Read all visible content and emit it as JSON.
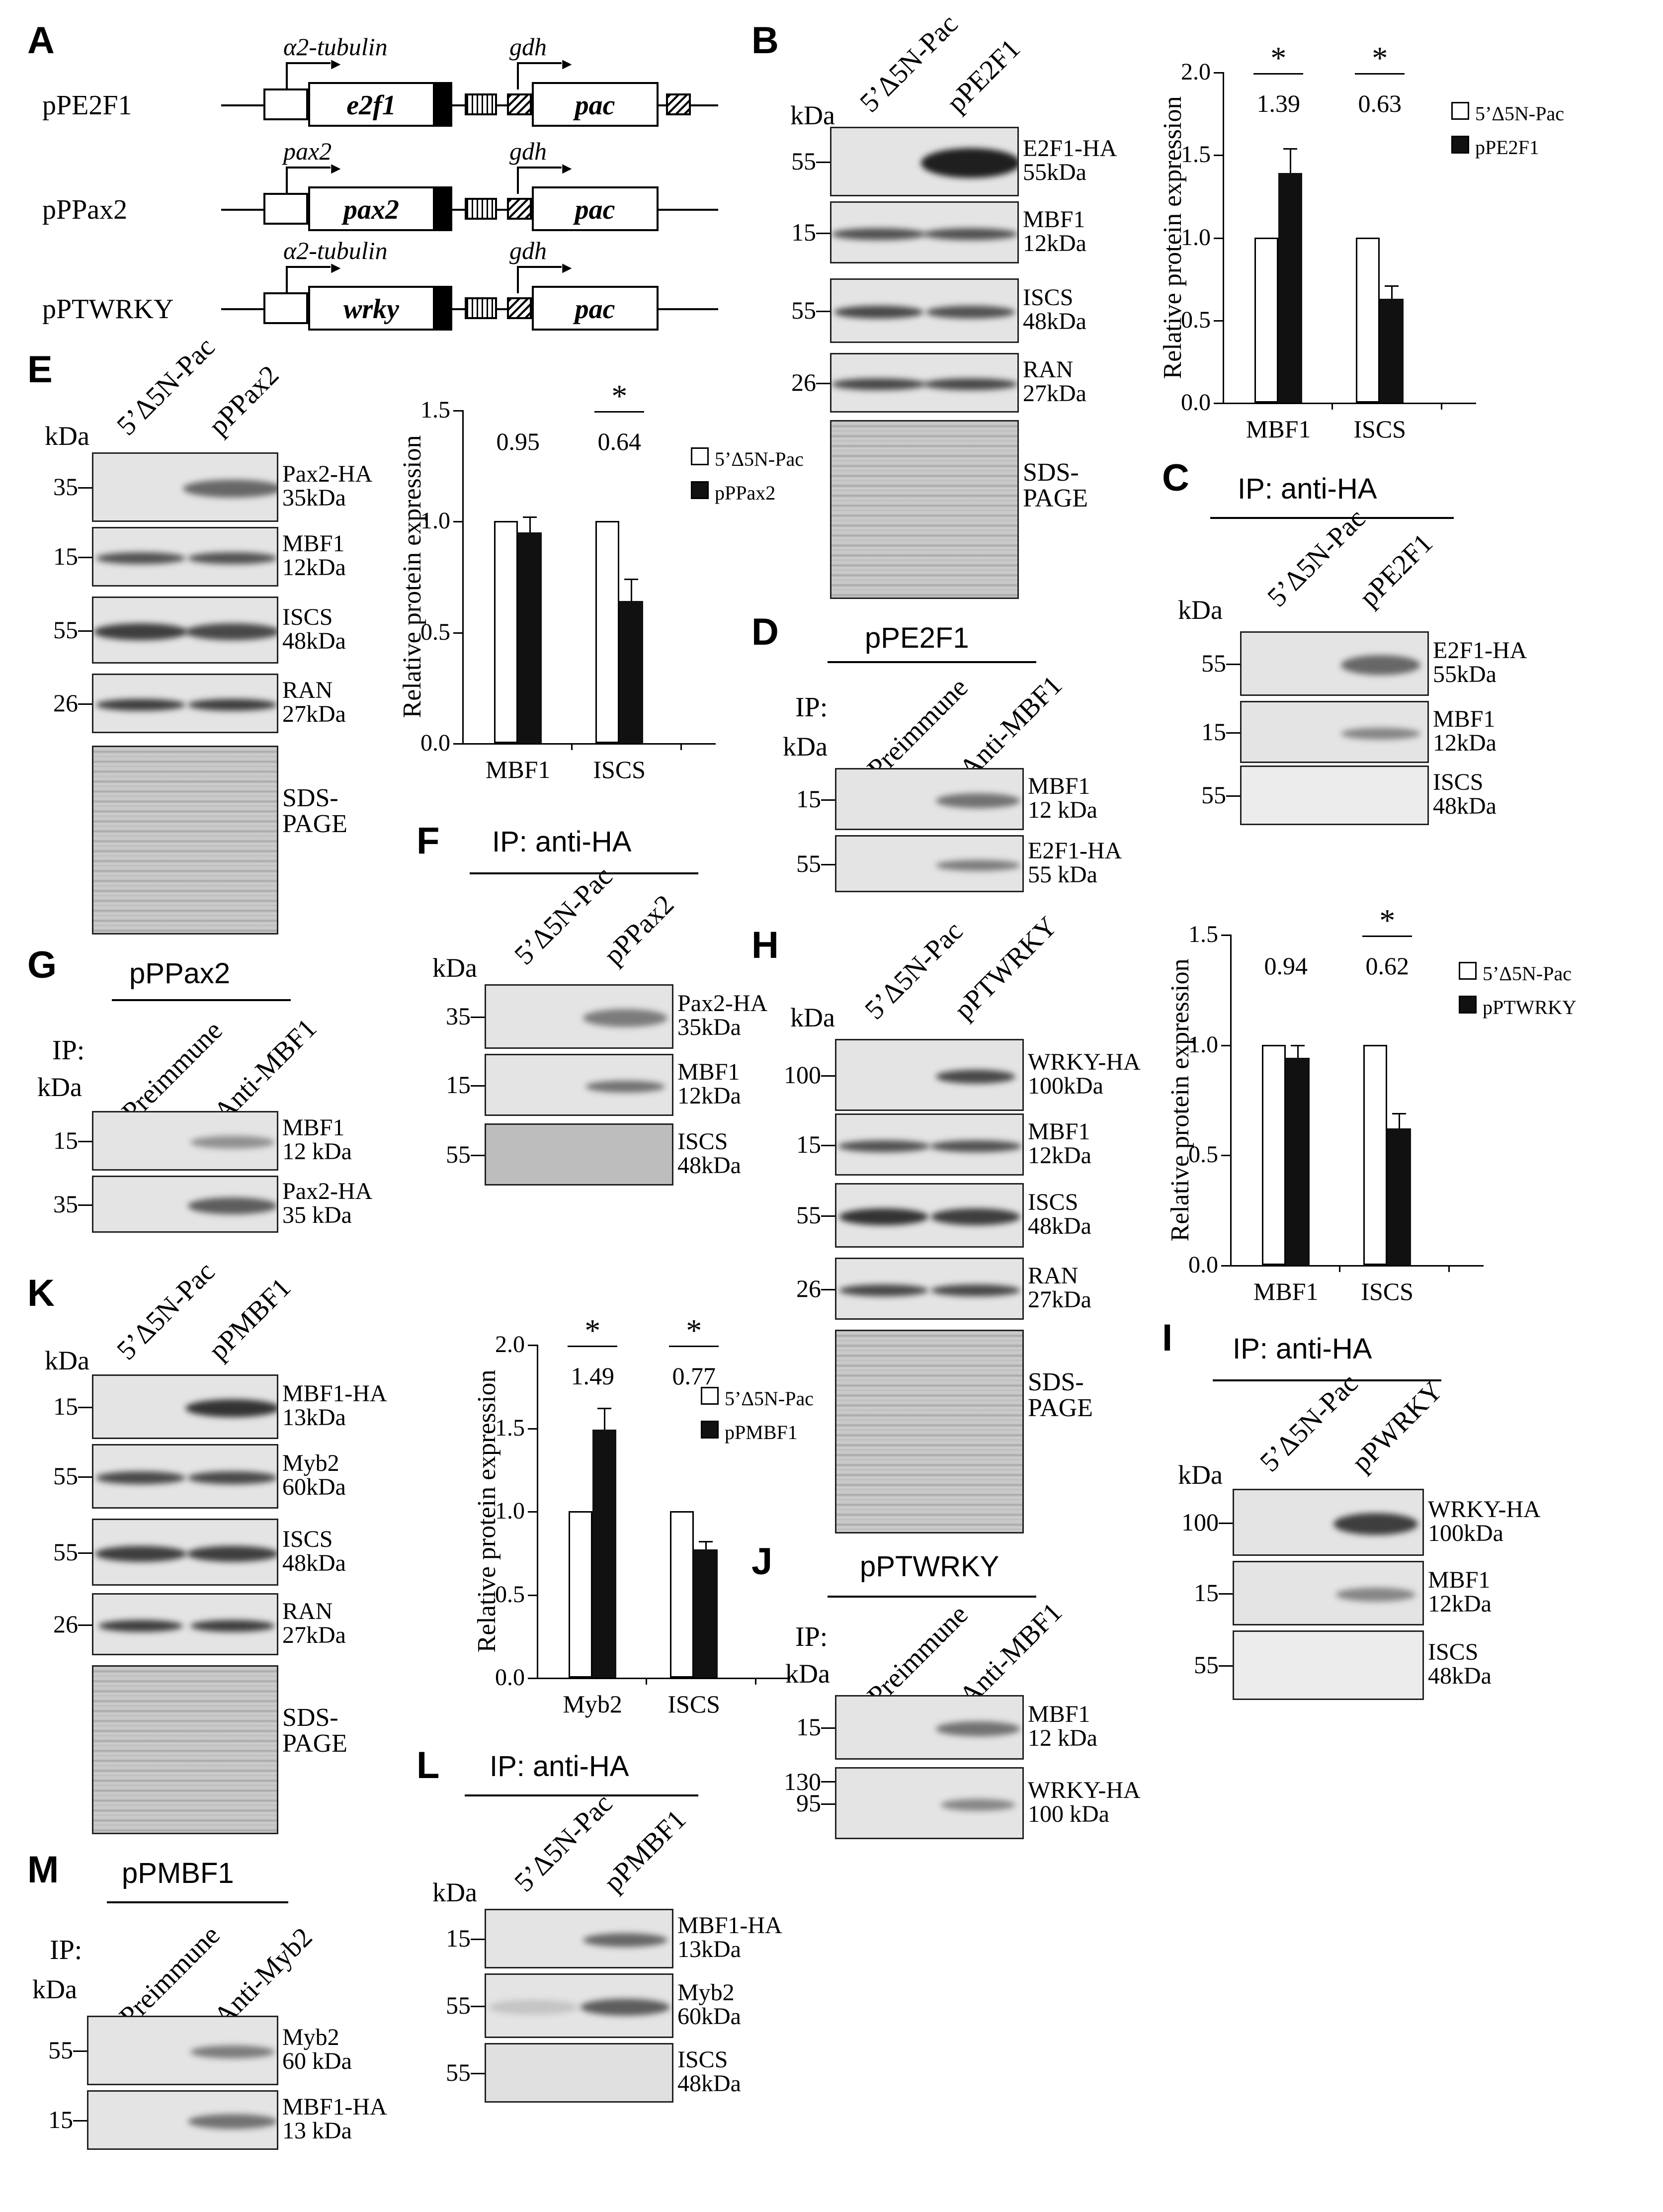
{
  "panel_letters": {
    "A": "A",
    "B": "B",
    "C": "C",
    "D": "D",
    "E": "E",
    "F": "F",
    "G": "G",
    "H": "H",
    "I": "I",
    "J": "J",
    "K": "K",
    "L": "L",
    "M": "M"
  },
  "common": {
    "kda": "kDa",
    "ctrl": "5’Δ5N-Pac",
    "ip_anti_ha": "IP: anti-HA",
    "ip": "IP:",
    "preimmune": "Preimmune",
    "anti_mbf1": "Anti-MBF1",
    "anti_myb2": "Anti-Myb2",
    "sds_page": "SDS-\nPAGE",
    "y_label": "Relative protein expression"
  },
  "panelA": {
    "constructs": [
      {
        "name": "pPE2F1",
        "promoter": "α2-tubulin",
        "gene": "e2f1",
        "gdh": "gdh",
        "pac": "pac"
      },
      {
        "name": "pPPax2",
        "promoter": "pax2",
        "gene": "pax2",
        "gdh": "gdh",
        "pac": "pac"
      },
      {
        "name": "pPTWRKY",
        "promoter": "α2-tubulin",
        "gene": "wrky",
        "gdh": "gdh",
        "pac": "pac"
      }
    ]
  },
  "panelB": {
    "lane2": "pPE2F1",
    "markers": [
      "55",
      "15",
      "55",
      "26"
    ],
    "labels": [
      "E2F1-HA\n55kDa",
      "MBF1\n12kDa",
      "ISCS\n48kDa",
      "RAN\n27kDa"
    ]
  },
  "panelC": {
    "lane2": "pPE2F1",
    "markers": [
      "55",
      "15",
      "55"
    ],
    "labels": [
      "E2F1-HA\n55kDa",
      "MBF1\n12kDa",
      "ISCS\n48kDa"
    ]
  },
  "panelD": {
    "title": "pPE2F1",
    "markers": [
      "15",
      "55"
    ],
    "labels": [
      "MBF1\n12 kDa",
      "E2F1-HA\n55 kDa"
    ]
  },
  "panelE": {
    "lane2": "pPPax2",
    "markers": [
      "35",
      "15",
      "55",
      "26"
    ],
    "labels": [
      "Pax2-HA\n35kDa",
      "MBF1\n12kDa",
      "ISCS\n48kDa",
      "RAN\n27kDa"
    ]
  },
  "panelF": {
    "lane2": "pPPax2",
    "markers": [
      "35",
      "15",
      "55"
    ],
    "labels": [
      "Pax2-HA\n35kDa",
      "MBF1\n12kDa",
      "ISCS\n48kDa"
    ]
  },
  "panelG": {
    "title": "pPPax2",
    "markers": [
      "15",
      "35"
    ],
    "labels": [
      "MBF1\n12 kDa",
      "Pax2-HA\n35 kDa"
    ]
  },
  "panelH": {
    "lane2": "pPTWRKY",
    "markers": [
      "100",
      "15",
      "55",
      "26"
    ],
    "labels": [
      "WRKY-HA\n100kDa",
      "MBF1\n12kDa",
      "ISCS\n48kDa",
      "RAN\n27kDa"
    ]
  },
  "panelI": {
    "lane2": "pPWRKY",
    "markers": [
      "100",
      "15",
      "55"
    ],
    "labels": [
      "WRKY-HA\n100kDa",
      "MBF1\n12kDa",
      "ISCS\n48kDa"
    ]
  },
  "panelJ": {
    "title": "pPTWRKY",
    "markers": [
      "15",
      "130",
      "95"
    ],
    "labels": [
      "MBF1\n12 kDa",
      "WRKY-HA\n100 kDa"
    ]
  },
  "panelK": {
    "lane2": "pPMBF1",
    "markers": [
      "15",
      "55",
      "55",
      "26"
    ],
    "labels": [
      "MBF1-HA\n13kDa",
      "Myb2\n60kDa",
      "ISCS\n48kDa",
      "RAN\n27kDa"
    ]
  },
  "panelL": {
    "lane2": "pPMBF1",
    "markers": [
      "15",
      "55",
      "55"
    ],
    "labels": [
      "MBF1-HA\n13kDa",
      "Myb2\n60kDa",
      "ISCS\n48kDa"
    ]
  },
  "panelM": {
    "title": "pPMBF1",
    "markers": [
      "55",
      "15"
    ],
    "labels": [
      "Myb2\n60 kDa",
      "MBF1-HA\n13 kDa"
    ]
  },
  "colors": {
    "control_fill": "#ffffff",
    "treated_fill": "#111111",
    "blot_bg": "#e6e6e6"
  },
  "chart_data": [
    {
      "id": "B",
      "type": "bar",
      "categories": [
        "MBF1",
        "ISCS"
      ],
      "series": [
        {
          "name": "5’Δ5N-Pac",
          "values": [
            1.0,
            1.0
          ]
        },
        {
          "name": "pPE2F1",
          "values": [
            1.39,
            0.63
          ],
          "errors": [
            0.15,
            0.08
          ]
        }
      ],
      "annotations": [
        "1.39",
        "0.63"
      ],
      "significance": [
        "*",
        "*"
      ],
      "ylabel": "Relative protein expression",
      "ylim": [
        0,
        2.0
      ],
      "yticks": [
        "0.0",
        "0.5",
        "1.0",
        "1.5",
        "2.0"
      ],
      "legend": "top-right"
    },
    {
      "id": "E",
      "type": "bar",
      "categories": [
        "MBF1",
        "ISCS"
      ],
      "series": [
        {
          "name": "5’Δ5N-Pac",
          "values": [
            1.0,
            1.0
          ]
        },
        {
          "name": "pPPax2",
          "values": [
            0.95,
            0.64
          ],
          "errors": [
            0.07,
            0.1
          ]
        }
      ],
      "annotations": [
        "0.95",
        "0.64"
      ],
      "significance": [
        "",
        "*"
      ],
      "ylabel": "Relative protein expression",
      "ylim": [
        0,
        1.5
      ],
      "yticks": [
        "0.0",
        "0.5",
        "1.0",
        "1.5"
      ],
      "legend": "top-right"
    },
    {
      "id": "H",
      "type": "bar",
      "categories": [
        "MBF1",
        "ISCS"
      ],
      "series": [
        {
          "name": "5’Δ5N-Pac",
          "values": [
            1.0,
            1.0
          ]
        },
        {
          "name": "pPTWRKY",
          "values": [
            0.94,
            0.62
          ],
          "errors": [
            0.06,
            0.07
          ]
        }
      ],
      "annotations": [
        "0.94",
        "0.62"
      ],
      "significance": [
        "",
        "*"
      ],
      "ylabel": "Relative protein expression",
      "ylim": [
        0,
        1.5
      ],
      "yticks": [
        "0.0",
        "0.5",
        "1.0",
        "1.5"
      ],
      "legend": "top-right"
    },
    {
      "id": "K",
      "type": "bar",
      "categories": [
        "Myb2",
        "ISCS"
      ],
      "series": [
        {
          "name": "5’Δ5N-Pac",
          "values": [
            1.0,
            1.0
          ]
        },
        {
          "name": "pPMBF1",
          "values": [
            1.49,
            0.77
          ],
          "errors": [
            0.13,
            0.05
          ]
        }
      ],
      "annotations": [
        "1.49",
        "0.77"
      ],
      "significance": [
        "*",
        "*"
      ],
      "ylabel": "Relative protein expression",
      "ylim": [
        0,
        2.0
      ],
      "yticks": [
        "0.0",
        "0.5",
        "1.0",
        "1.5",
        "2.0"
      ],
      "legend": "top-right"
    }
  ]
}
